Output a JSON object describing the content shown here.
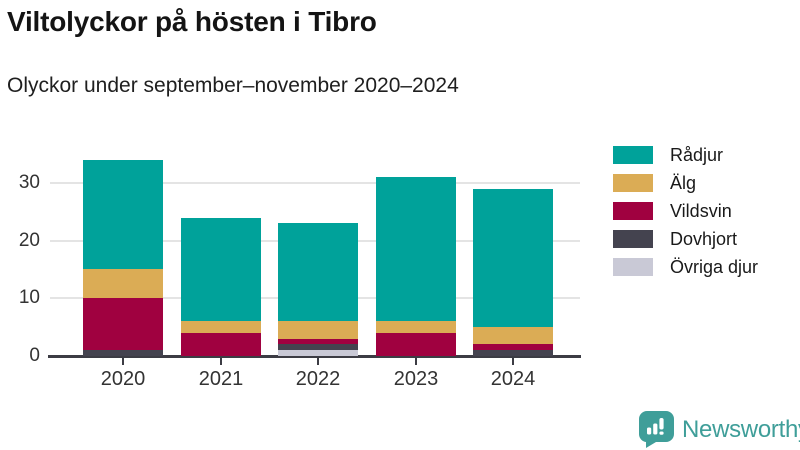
{
  "header": {
    "title": "Viltolyckor på hösten i Tibro",
    "subtitle": "Olyckor under september–november 2020–2024"
  },
  "chart_data": {
    "type": "bar",
    "stacked": true,
    "title": "Viltolyckor på hösten i Tibro",
    "subtitle": "Olyckor under september–november 2020–2024",
    "categories": [
      "2020",
      "2021",
      "2022",
      "2023",
      "2024"
    ],
    "series": [
      {
        "name": "Rådjur",
        "color": "#00a29a",
        "values": [
          19,
          18,
          17,
          25,
          24
        ]
      },
      {
        "name": "Älg",
        "color": "#dbac55",
        "values": [
          5,
          2,
          3,
          2,
          3
        ]
      },
      {
        "name": "Vildsvin",
        "color": "#a00140",
        "values": [
          9,
          4,
          1,
          4,
          1
        ]
      },
      {
        "name": "Dovhjort",
        "color": "#44434f",
        "values": [
          1,
          0,
          1,
          0,
          1
        ]
      },
      {
        "name": "Övriga djur",
        "color": "#c9c9d6",
        "values": [
          0,
          0,
          1,
          0,
          0
        ]
      }
    ],
    "totals": [
      34,
      24,
      23,
      31,
      29
    ],
    "stack_order_bottom_to_top": [
      "Övriga djur",
      "Dovhjort",
      "Vildsvin",
      "Älg",
      "Rådjur"
    ],
    "xlabel": "",
    "ylabel": "",
    "yticks": [
      0,
      10,
      20,
      30
    ],
    "ylim": [
      0,
      38
    ],
    "grid": "horizontal",
    "legend_position": "right",
    "axis_color": "#3c3c44",
    "gridline_color": "#e4e4e4"
  },
  "branding": {
    "logo_text": "Newsworthy",
    "logo_color": "#3f9e99"
  }
}
